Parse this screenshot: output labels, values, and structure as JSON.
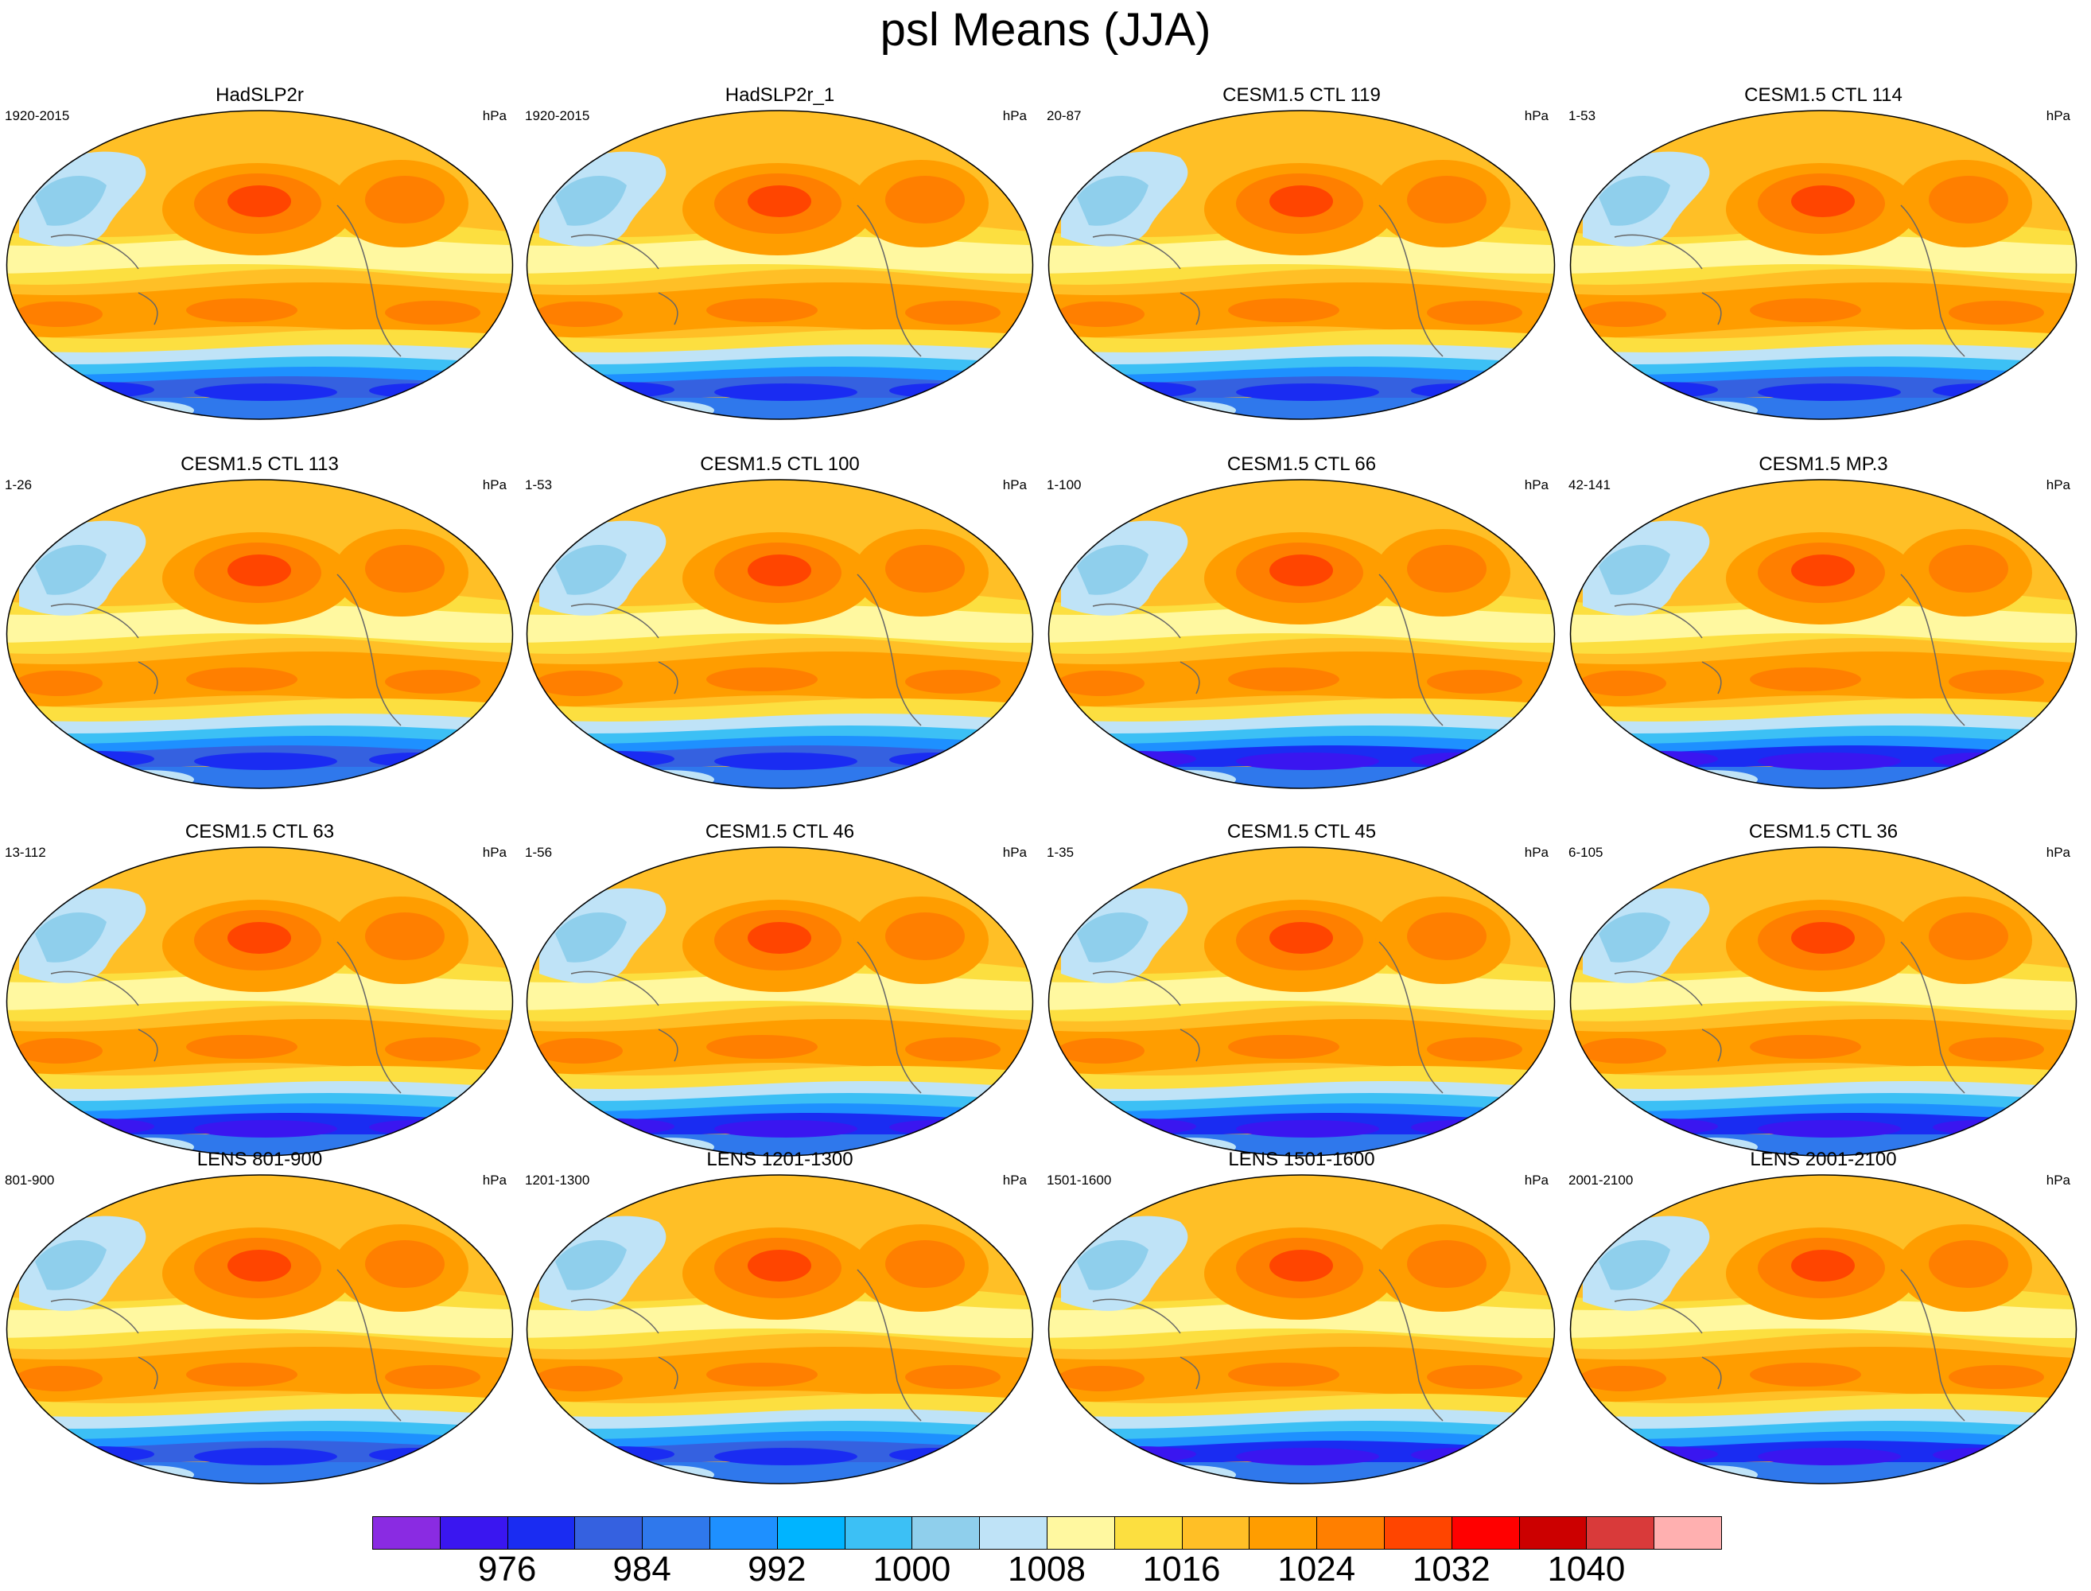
{
  "title": "psl Means (JJA)",
  "unit": "hPa",
  "panels": [
    {
      "title": "HadSLP2r",
      "period": "1920-2015"
    },
    {
      "title": "HadSLP2r_1",
      "period": "1920-2015"
    },
    {
      "title": "CESM1.5 CTL 119",
      "period": "20-87"
    },
    {
      "title": "CESM1.5 CTL 114",
      "period": "1-53"
    },
    {
      "title": "CESM1.5 CTL 113",
      "period": "1-26"
    },
    {
      "title": "CESM1.5 CTL 100",
      "period": "1-53"
    },
    {
      "title": "CESM1.5 CTL 66",
      "period": "1-100"
    },
    {
      "title": "CESM1.5 MP.3",
      "period": "42-141"
    },
    {
      "title": "CESM1.5 CTL 63",
      "period": "13-112"
    },
    {
      "title": "CESM1.5 CTL 46",
      "period": "1-56"
    },
    {
      "title": "CESM1.5 CTL 45",
      "period": "1-35"
    },
    {
      "title": "CESM1.5 CTL 36",
      "period": "6-105"
    },
    {
      "title": "LENS 801-900",
      "period": "801-900"
    },
    {
      "title": "LENS 1201-1300",
      "period": "1201-1300"
    },
    {
      "title": "LENS 1501-1600",
      "period": "1501-1600"
    },
    {
      "title": "LENS 2001-2100",
      "period": "2001-2100"
    }
  ],
  "colorbar": {
    "colors": [
      "#8a2be2",
      "#3a16f0",
      "#1a2cf2",
      "#3561e0",
      "#2f78ec",
      "#1e90ff",
      "#00b4ff",
      "#3cc0f5",
      "#8fcfec",
      "#bfe3f7",
      "#fff8a0",
      "#fcdf40",
      "#ffbf26",
      "#ff9d00",
      "#ff7f00",
      "#ff4500",
      "#ff0000",
      "#cc0000",
      "#d93a3a",
      "#ffb0b0"
    ],
    "labels": [
      "976",
      "984",
      "992",
      "1000",
      "1008",
      "1016",
      "1024",
      "1032",
      "1040"
    ]
  }
}
